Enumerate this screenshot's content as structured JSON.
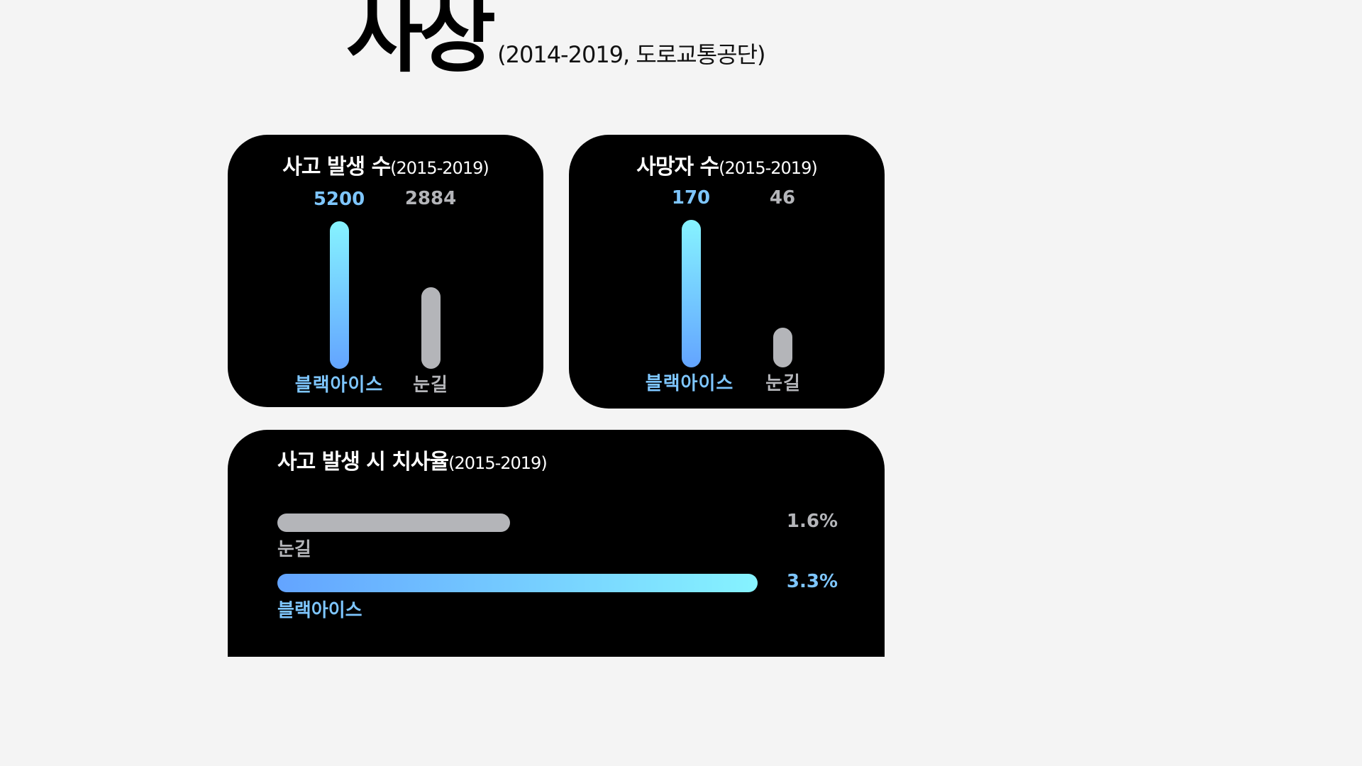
{
  "header": {
    "title": "사상",
    "subtitle": "(2014-2019, 도로교통공단)"
  },
  "colors": {
    "background": "#f4f4f4",
    "card": "#000000",
    "black_ice_gradient_start": "#63a4ff",
    "black_ice_gradient_end": "#86f3ff",
    "black_ice_text": "#7ec6ff",
    "snow_road": "#b4b5b9"
  },
  "chart_data": [
    {
      "type": "bar",
      "title": "사고 발생 수",
      "subtitle": "(2015-2019)",
      "categories": [
        "블랙아이스",
        "눈길"
      ],
      "values": [
        5200,
        2884
      ],
      "value_labels": [
        "5200",
        "2884"
      ]
    },
    {
      "type": "bar",
      "title": "사망자 수",
      "subtitle": "(2015-2019)",
      "categories": [
        "블랙아이스",
        "눈길"
      ],
      "values": [
        170,
        46
      ],
      "value_labels": [
        "170",
        "46"
      ]
    },
    {
      "type": "bar",
      "orientation": "horizontal",
      "title": "사고 발생 시 치사율",
      "subtitle": "(2015-2019)",
      "categories": [
        "눈길",
        "블랙아이스"
      ],
      "values": [
        1.6,
        3.3
      ],
      "value_labels": [
        "1.6%",
        "3.3%"
      ]
    }
  ]
}
